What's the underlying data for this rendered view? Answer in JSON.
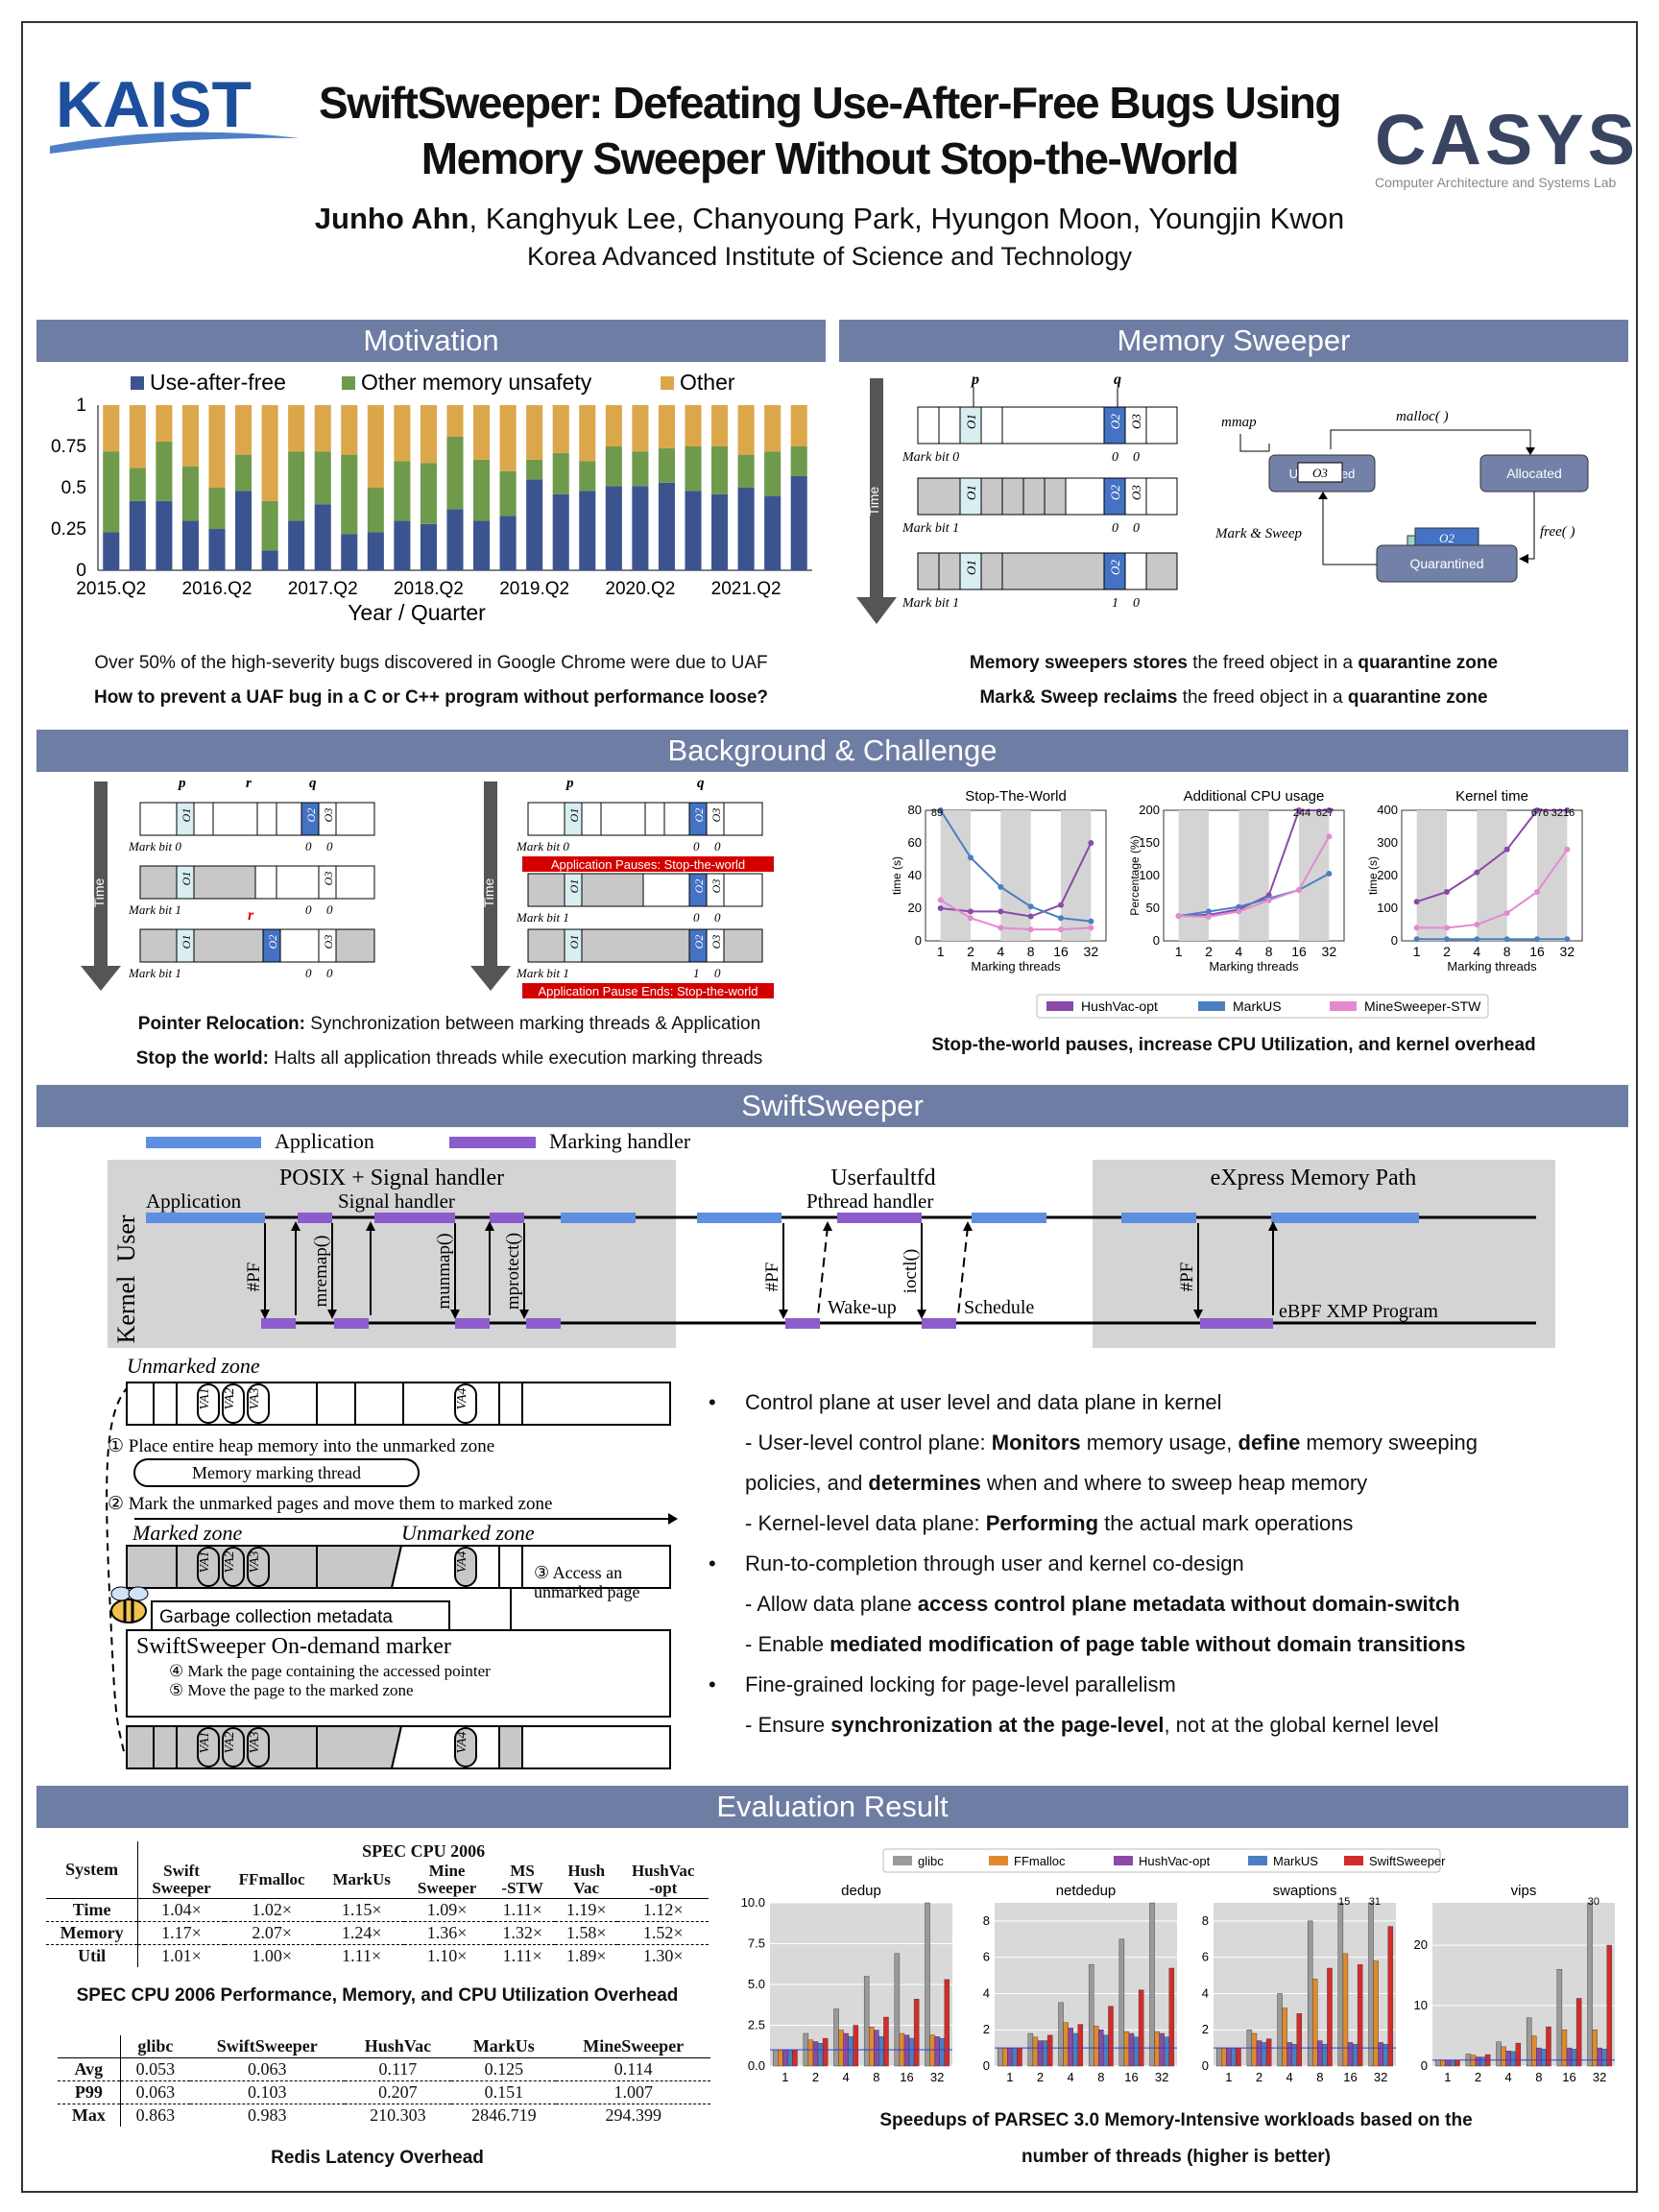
{
  "header": {
    "left_logo": "KAIST",
    "title_line1": "SwiftSweeper: Defeating Use-After-Free Bugs Using",
    "title_line2": "Memory Sweeper Without Stop-the-World",
    "first_author": "Junho Ahn",
    "other_authors": ", Kanghyuk Lee, Chanyoung Park, Hyungon Moon, Youngjin Kwon",
    "affiliation": "Korea Advanced Institute of Science and Technology",
    "right_logo": "CASYS",
    "right_logo_sub": "Computer Architecture and Systems Lab"
  },
  "motivation": {
    "title": "Motivation",
    "caption1": "Over 50% of the high-severity bugs discovered in Google Chrome were due to UAF",
    "caption2": "How to prevent a UAF bug in a C or C++ program without performance loose?"
  },
  "memsweeper": {
    "title": "Memory Sweeper",
    "time_label": "Time",
    "p": "p",
    "q": "q",
    "o1": "O1",
    "o2": "O2",
    "o3": "O3",
    "rows": [
      {
        "mark": "Mark bit 0",
        "v2": "0",
        "v3": "0"
      },
      {
        "mark": "Mark bit 1",
        "v2": "0",
        "v3": "0"
      },
      {
        "mark": "Mark bit 1",
        "v2": "1",
        "v3": "0"
      }
    ],
    "state": {
      "mmap": "mmap",
      "malloc": "malloc( )",
      "free": "free( )",
      "mark_sweep": "Mark & Sweep",
      "unalloc": "Unallocated",
      "allocated": "Allocated",
      "quarantined": "Quarantined"
    },
    "cap1_a": "Memory sweepers stores",
    "cap1_b": " the freed object in a ",
    "cap1_c": "quarantine zone",
    "cap2_a": "Mark& Sweep reclaims",
    "cap2_b": " the freed object in a ",
    "cap2_c": "quarantine zone"
  },
  "background": {
    "title": "Background & Challenge",
    "time_label": "Time",
    "r": "r",
    "pause_start": "Application Pauses: Stop-the-world",
    "pause_end": "Application Pause Ends: Stop-the-world",
    "left_rows": [
      {
        "mark": "Mark bit 0",
        "a": "0",
        "b": "0"
      },
      {
        "mark": "Mark bit 1",
        "a": "0",
        "b": "0"
      },
      {
        "mark": "Mark bit 1",
        "a": "0",
        "b": "0"
      }
    ],
    "right_rows": [
      {
        "mark": "Mark bit 0",
        "a": "0",
        "b": "0"
      },
      {
        "mark": "Mark bit 1",
        "a": "0",
        "b": "0"
      },
      {
        "mark": "Mark bit 1",
        "a": "1",
        "b": "0"
      }
    ],
    "cap1_a": "Pointer Relocation:",
    "cap1_b": " Synchronization between marking threads & Application",
    "cap2_a": "Stop the world:",
    "cap2_b": " Halts all application threads while execution marking threads",
    "cap3": "Stop-the-world pauses, increase CPU Utilization, and kernel overhead",
    "legend": [
      "HushVac-opt",
      "MarkUS",
      "MineSweeper-STW"
    ],
    "xlabel": "Marking threads"
  },
  "swift": {
    "title": "SwiftSweeper",
    "legend_app": "Application",
    "legend_mark": "Marking handler",
    "user": "User",
    "kernel": "Kernel",
    "box1": "POSIX + Signal handler",
    "box2": "Userfaultfd",
    "box3": "eXpress Memory Path",
    "application": "Application",
    "signal_handler": "Signal handler",
    "pthread_handler": "Pthread handler",
    "pf": "#PF",
    "mremap": "mremap()",
    "munmap": "munmap()",
    "mprotect": "mprotect()",
    "ioctl": "ioctl()",
    "wakeup": "Wake-up",
    "schedule": "Schedule",
    "ebpf": "eBPF XMP Program",
    "unmarked_zone": "Unmarked zone",
    "marked_zone": "Marked zone",
    "unmarked_zone2": "Unmarked  zone",
    "va1": "VA1",
    "va2": "VA2",
    "va3": "VA3",
    "va4": "VA4",
    "step1": "① Place entire heap memory into the unmarked zone",
    "mmt": "Memory marking thread",
    "step2": "② Mark the unmarked pages and move them to marked zone",
    "step3a": "③ Access an",
    "step3b": "unmarked page",
    "gcmeta": "Garbage collection metadata",
    "odm": "SwiftSweeper On-demand marker",
    "step4": "④ Mark the page containing the accessed pointer",
    "step5": "⑤ Move the page to the marked zone",
    "b1": "Control plane at user level and data plane in kernel",
    "b1s1_a": "- User-level control plane: ",
    "b1s1_b": "Monitors",
    "b1s1_c": " memory usage, ",
    "b1s1_d": "define",
    "b1s1_e": " memory sweeping",
    "b1s1_f": "policies, and ",
    "b1s1_g": "determines",
    "b1s1_h": " when and where to sweep heap memory",
    "b1s2_a": "- Kernel-level data plane: ",
    "b1s2_b": "Performing",
    "b1s2_c": " the actual mark operations",
    "b2": "Run-to-completion through user and kernel co-design",
    "b2s1_a": "- Allow data plane ",
    "b2s1_b": "access control plane metadata without domain-switch",
    "b2s2_a": "- Enable ",
    "b2s2_b": "mediated modification of page table without domain transitions",
    "b3": "Fine-grained locking for page-level parallelism",
    "b3s1_a": "- Ensure ",
    "b3s1_b": "synchronization at the page-level",
    ",b3s1_c": "",
    "b3s1_c": ", not at the global kernel level"
  },
  "eval": {
    "title": "Evaluation Result",
    "spec": {
      "system": "System",
      "group": "SPEC  CPU 2006",
      "cols": [
        "Swift\nSweeper",
        "FFmalloc",
        "MarkUs",
        "Mine\nSweeper",
        "MS\n-STW",
        "Hush\nVac",
        "HushVac\n-opt"
      ],
      "rows": [
        {
          "name": "Time",
          "vals": [
            "1.04×",
            "1.02×",
            "1.15×",
            "1.09×",
            "1.11×",
            "1.19×",
            "1.12×"
          ]
        },
        {
          "name": "Memory",
          "vals": [
            "1.17×",
            "2.07×",
            "1.24×",
            "1.36×",
            "1.32×",
            "1.58×",
            "1.52×"
          ]
        },
        {
          "name": "Util",
          "vals": [
            "1.01×",
            "1.00×",
            "1.11×",
            "1.10×",
            "1.11×",
            "1.89×",
            "1.30×"
          ]
        }
      ],
      "caption": "SPEC CPU 2006 Performance, Memory, and CPU Utilization Overhead"
    },
    "redis": {
      "cols": [
        "glibc",
        "SwiftSweeper",
        "HushVac",
        "MarkUs",
        "MineSweeper"
      ],
      "rows": [
        {
          "name": "Avg",
          "vals": [
            "0.053",
            "0.063",
            "0.117",
            "0.125",
            "0.114"
          ]
        },
        {
          "name": "P99",
          "vals": [
            "0.063",
            "0.103",
            "0.207",
            "0.151",
            "1.007"
          ]
        },
        {
          "name": "Max",
          "vals": [
            "0.863",
            "0.983",
            "210.303",
            "2846.719",
            "294.399"
          ]
        }
      ],
      "caption": "Redis Latency Overhead"
    },
    "parsec_caption1": "Speedups of PARSEC 3.0 Memory-Intensive workloads based on the",
    "parsec_caption2": "number of threads (higher is better)"
  },
  "chart_data": [
    {
      "type": "bar",
      "stacked": true,
      "legend": [
        "Use-after-free",
        "Other memory unsafety",
        "Other"
      ],
      "colors": [
        "#3b5490",
        "#6f9a4c",
        "#dca74b"
      ],
      "xlabel": "Year / Quarter",
      "ylabel": "",
      "tick_labels": [
        "2015.Q2",
        "2016.Q2",
        "2017.Q2",
        "2018.Q2",
        "2019.Q2",
        "2020.Q2",
        "2021.Q2"
      ],
      "ylim": [
        0,
        1
      ],
      "yticks": [
        "0",
        "0.25",
        "0.5",
        "0.75",
        "1"
      ],
      "series": [
        {
          "name": "Use-after-free",
          "values": [
            0.23,
            0.42,
            0.42,
            0.3,
            0.25,
            0.48,
            0.12,
            0.3,
            0.4,
            0.22,
            0.23,
            0.3,
            0.28,
            0.37,
            0.3,
            0.33,
            0.55,
            0.46,
            0.48,
            0.51,
            0.51,
            0.53,
            0.48,
            0.46,
            0.5,
            0.45,
            0.57
          ]
        },
        {
          "name": "Other memory unsafety",
          "values": [
            0.49,
            0.2,
            0.36,
            0.33,
            0.25,
            0.22,
            0.3,
            0.42,
            0.32,
            0.48,
            0.27,
            0.36,
            0.37,
            0.44,
            0.37,
            0.27,
            0.12,
            0.25,
            0.18,
            0.24,
            0.21,
            0.21,
            0.27,
            0.29,
            0.2,
            0.27,
            0.18
          ]
        },
        {
          "name": "Other",
          "values": [
            0.28,
            0.38,
            0.22,
            0.37,
            0.5,
            0.3,
            0.58,
            0.28,
            0.28,
            0.3,
            0.5,
            0.34,
            0.35,
            0.19,
            0.33,
            0.4,
            0.33,
            0.29,
            0.34,
            0.25,
            0.28,
            0.26,
            0.25,
            0.25,
            0.3,
            0.28,
            0.25
          ]
        }
      ]
    },
    {
      "type": "line",
      "title": "Stop-The-World",
      "ylabel": "time (s)",
      "xlabel": "Marking threads",
      "x": [
        "1",
        "2",
        "4",
        "8",
        "16",
        "32"
      ],
      "ylim": [
        0,
        80
      ],
      "yticks": [
        "0",
        "20",
        "40",
        "60",
        "80"
      ],
      "series": [
        {
          "name": "HushVac-opt",
          "color": "#8a4aa8",
          "values": [
            20,
            18,
            18,
            15,
            22,
            60
          ]
        },
        {
          "name": "MarkUS",
          "color": "#4a7fc1",
          "values": [
            89,
            51,
            33,
            21,
            14,
            12
          ]
        },
        {
          "name": "MineSweeper-STW",
          "color": "#e38ad0",
          "values": [
            25,
            14,
            8,
            7,
            7,
            8
          ]
        }
      ],
      "annotations": [
        "89"
      ]
    },
    {
      "type": "line",
      "title": "Additional CPU usage",
      "ylabel": "Percentage (%)",
      "xlabel": "Marking threads",
      "x": [
        "1",
        "2",
        "4",
        "8",
        "16",
        "32"
      ],
      "ylim": [
        0,
        200
      ],
      "yticks": [
        "0",
        "50",
        "100",
        "150",
        "200"
      ],
      "series": [
        {
          "name": "HushVac-opt",
          "color": "#8a4aa8",
          "values": [
            38,
            40,
            48,
            70,
            200,
            200
          ]
        },
        {
          "name": "MarkUS",
          "color": "#4a7fc1",
          "values": [
            38,
            45,
            52,
            65,
            78,
            103
          ]
        },
        {
          "name": "MineSweeper-STW",
          "color": "#e38ad0",
          "values": [
            38,
            37,
            45,
            62,
            78,
            160
          ]
        }
      ],
      "annotations": [
        "244",
        "627"
      ]
    },
    {
      "type": "line",
      "title": "Kernel time",
      "ylabel": "time (s)",
      "xlabel": "Marking threads",
      "x": [
        "1",
        "2",
        "4",
        "8",
        "16",
        "32"
      ],
      "ylim": [
        0,
        400
      ],
      "yticks": [
        "0",
        "100",
        "200",
        "300",
        "400"
      ],
      "series": [
        {
          "name": "HushVac-opt",
          "color": "#8a4aa8",
          "values": [
            120,
            150,
            210,
            280,
            400,
            400
          ]
        },
        {
          "name": "MarkUS",
          "color": "#4a7fc1",
          "values": [
            5,
            5,
            5,
            5,
            5,
            5
          ]
        },
        {
          "name": "MineSweeper-STW",
          "color": "#e38ad0",
          "values": [
            40,
            40,
            50,
            85,
            150,
            280
          ]
        }
      ],
      "annotations": [
        "676",
        "3216"
      ]
    },
    {
      "type": "bar",
      "title": "dedup",
      "x": [
        "1",
        "2",
        "4",
        "8",
        "16",
        "32"
      ],
      "ylim": [
        0,
        10
      ],
      "yticks": [
        "0.0",
        "2.5",
        "5.0",
        "7.5",
        "10.0"
      ],
      "legend": [
        "glibc",
        "FFmalloc",
        "HushVac-opt",
        "MarkUS",
        "SwiftSweeper"
      ],
      "series": [
        {
          "name": "glibc",
          "values": [
            1,
            2,
            3.5,
            5.5,
            6.9,
            10
          ]
        },
        {
          "name": "FFmalloc",
          "values": [
            1,
            1.6,
            2.2,
            2.4,
            2.0,
            1.9
          ]
        },
        {
          "name": "HushVac-opt",
          "values": [
            1,
            1.5,
            2.0,
            2.2,
            1.9,
            1.8
          ]
        },
        {
          "name": "MarkUS",
          "values": [
            1,
            1.4,
            1.8,
            1.8,
            1.7,
            1.7
          ]
        },
        {
          "name": "SwiftSweeper",
          "values": [
            1,
            1.7,
            2.5,
            3.0,
            4.1,
            5.3
          ]
        }
      ]
    },
    {
      "type": "bar",
      "title": "netdedup",
      "x": [
        "1",
        "2",
        "4",
        "8",
        "16",
        "32"
      ],
      "ylim": [
        0,
        9
      ],
      "yticks": [
        "0",
        "2",
        "4",
        "6",
        "8"
      ],
      "series": [
        {
          "name": "glibc",
          "values": [
            1,
            1.8,
            3.5,
            5.6,
            7.0,
            9.5
          ]
        },
        {
          "name": "FFmalloc",
          "values": [
            1,
            1.6,
            2.4,
            2.2,
            1.9,
            1.9
          ]
        },
        {
          "name": "HushVac-opt",
          "values": [
            1,
            1.4,
            2.1,
            2.0,
            1.8,
            1.8
          ]
        },
        {
          "name": "MarkUS",
          "values": [
            1,
            1.4,
            1.8,
            1.7,
            1.6,
            1.6
          ]
        },
        {
          "name": "SwiftSweeper",
          "values": [
            1,
            1.7,
            2.3,
            3.3,
            4.2,
            5.4
          ]
        }
      ]
    },
    {
      "type": "bar",
      "title": "swaptions",
      "x": [
        "1",
        "2",
        "4",
        "8",
        "16",
        "32"
      ],
      "ylim": [
        0,
        9
      ],
      "yticks": [
        "0",
        "2",
        "4",
        "6",
        "8"
      ],
      "series": [
        {
          "name": "glibc",
          "values": [
            1,
            2,
            4,
            8,
            9,
            9
          ]
        },
        {
          "name": "FFmalloc",
          "values": [
            1,
            1.8,
            3.2,
            4.8,
            6.2,
            5.8
          ]
        },
        {
          "name": "HushVac-opt",
          "values": [
            1,
            1.4,
            1.3,
            1.4,
            1.3,
            1.3
          ]
        },
        {
          "name": "MarkUS",
          "values": [
            1,
            1.3,
            1.2,
            1.2,
            1.2,
            1.2
          ]
        },
        {
          "name": "SwiftSweeper",
          "values": [
            1,
            1.5,
            2.9,
            5.4,
            5.6,
            7.7
          ]
        }
      ],
      "annotations": [
        "15",
        "31"
      ]
    },
    {
      "type": "bar",
      "title": "vips",
      "x": [
        "1",
        "2",
        "4",
        "8",
        "16",
        "32"
      ],
      "ylim": [
        0,
        27
      ],
      "yticks": [
        "0",
        "10",
        "20"
      ],
      "series": [
        {
          "name": "glibc",
          "values": [
            1,
            2,
            4,
            8,
            16,
            27
          ]
        },
        {
          "name": "FFmalloc",
          "values": [
            1,
            1.8,
            3.2,
            5.0,
            6.0,
            6.0
          ]
        },
        {
          "name": "HushVac-opt",
          "values": [
            1,
            1.5,
            2.5,
            3.0,
            3.0,
            3.0
          ]
        },
        {
          "name": "MarkUS",
          "values": [
            1,
            1.5,
            2.4,
            2.8,
            2.8,
            2.8
          ]
        },
        {
          "name": "SwiftSweeper",
          "values": [
            1,
            1.9,
            3.8,
            6.5,
            11.2,
            20
          ]
        }
      ],
      "annotations": [
        "30"
      ]
    }
  ]
}
